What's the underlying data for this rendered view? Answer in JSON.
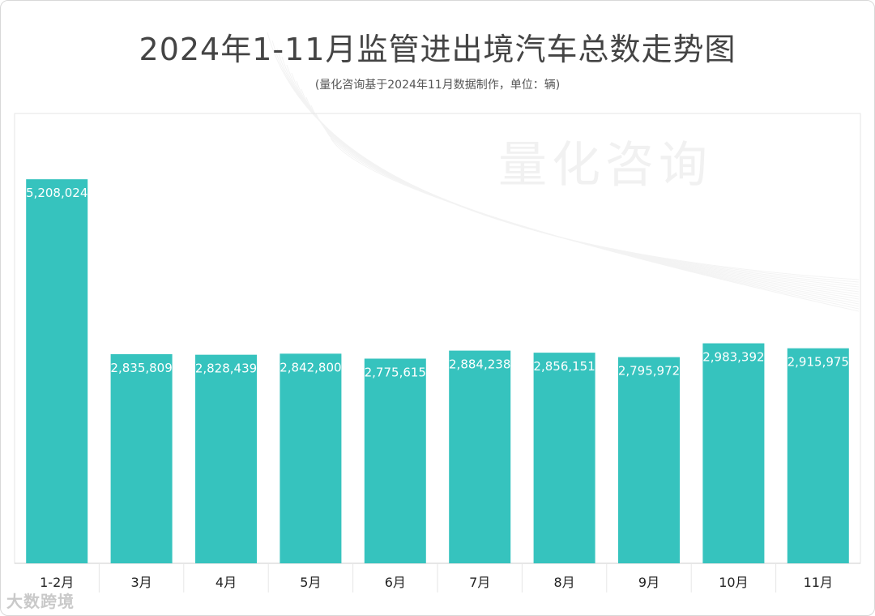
{
  "header": {
    "title": "2024年1-11月监管进出境汽车总数走势图",
    "subtitle": "(量化咨询基于2024年11月数据制作，单位：辆)"
  },
  "watermark": "量化咨询",
  "footer_logo": "大数跨境",
  "colors": {
    "bar": "#36C3BE",
    "bar_label": "#ffffff",
    "axis": "#cccccc",
    "tick_label": "#222222"
  },
  "chart_data": {
    "type": "bar",
    "title": "2024年1-11月监管进出境汽车总数走势图",
    "subtitle": "(量化咨询基于2024年11月数据制作，单位：辆)",
    "categories": [
      "1-2月",
      "3月",
      "4月",
      "5月",
      "6月",
      "7月",
      "8月",
      "9月",
      "10月",
      "11月"
    ],
    "values": [
      5208024,
      2835809,
      2828439,
      2842800,
      2775615,
      2884238,
      2856151,
      2795972,
      2983392,
      2915975
    ],
    "value_labels": [
      "5,208,024",
      "2,835,809",
      "2,828,439",
      "2,842,800",
      "2,775,615",
      "2,884,238",
      "2,856,151",
      "2,795,972",
      "2,983,392",
      "2,915,975"
    ],
    "ylim": [
      0,
      6100000
    ],
    "grid": false,
    "legend": "none"
  }
}
